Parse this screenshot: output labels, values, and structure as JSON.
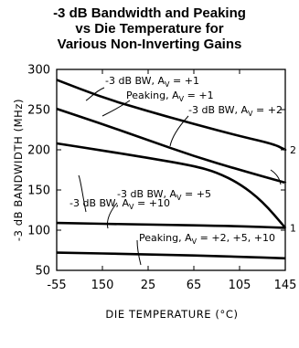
{
  "chart_data": {
    "type": "line",
    "title": [
      "-3 dB Bandwidth and Peaking",
      "vs Die Temperature for",
      "Various Non-Inverting Gains"
    ],
    "xlabel": "DIE TEMPERATURE (°C)",
    "ylabel": "-3 dB BANDWIDTH (MHz)",
    "xlim": [
      -55,
      145
    ],
    "ylim": [
      50,
      300
    ],
    "x_ticks": [
      "-55",
      "150",
      "25",
      "65",
      "105",
      "145"
    ],
    "y_ticks": [
      "300",
      "250",
      "200",
      "150",
      "100",
      "50"
    ],
    "grid": false,
    "right_axis_labels": [
      {
        "label": "2",
        "y": 200
      },
      {
        "label": "1",
        "y": 103
      }
    ],
    "series": [
      {
        "x": [
          -55,
          -15,
          25,
          65,
          105,
          135,
          145
        ],
        "values": [
          287,
          265,
          248,
          232,
          217,
          207,
          200
        ]
      },
      {
        "x": [
          -55,
          -15,
          25,
          65,
          105,
          145
        ],
        "values": [
          251,
          232,
          212,
          192,
          175,
          159
        ]
      },
      {
        "x": [
          -55,
          -15,
          25,
          65,
          85,
          105,
          125,
          145
        ],
        "values": [
          208,
          199,
          190,
          180,
          172,
          158,
          136,
          103
        ]
      },
      {
        "x": [
          -55,
          25,
          105,
          145
        ],
        "values": [
          109,
          107,
          105,
          103
        ]
      },
      {
        "x": [
          -55,
          25,
          105,
          145
        ],
        "values": [
          72,
          70,
          67,
          65
        ]
      }
    ],
    "annotations": [
      {
        "text": "-3 dB BW, A",
        "sub": "V",
        "suffix": " = +1"
      },
      {
        "text": "Peaking, A",
        "sub": "V",
        "suffix": " = +1"
      },
      {
        "text": "-3 dB BW, A",
        "sub": "V",
        "suffix": " = +2"
      },
      {
        "text": "-3 dB BW, A",
        "sub": "V",
        "suffix": " = +10"
      },
      {
        "text": "-3 dB BW, A",
        "sub": "V",
        "suffix": " = +5"
      },
      {
        "text": "Peaking, A",
        "sub": "V",
        "suffix": " = +2, +5, +10"
      }
    ]
  }
}
